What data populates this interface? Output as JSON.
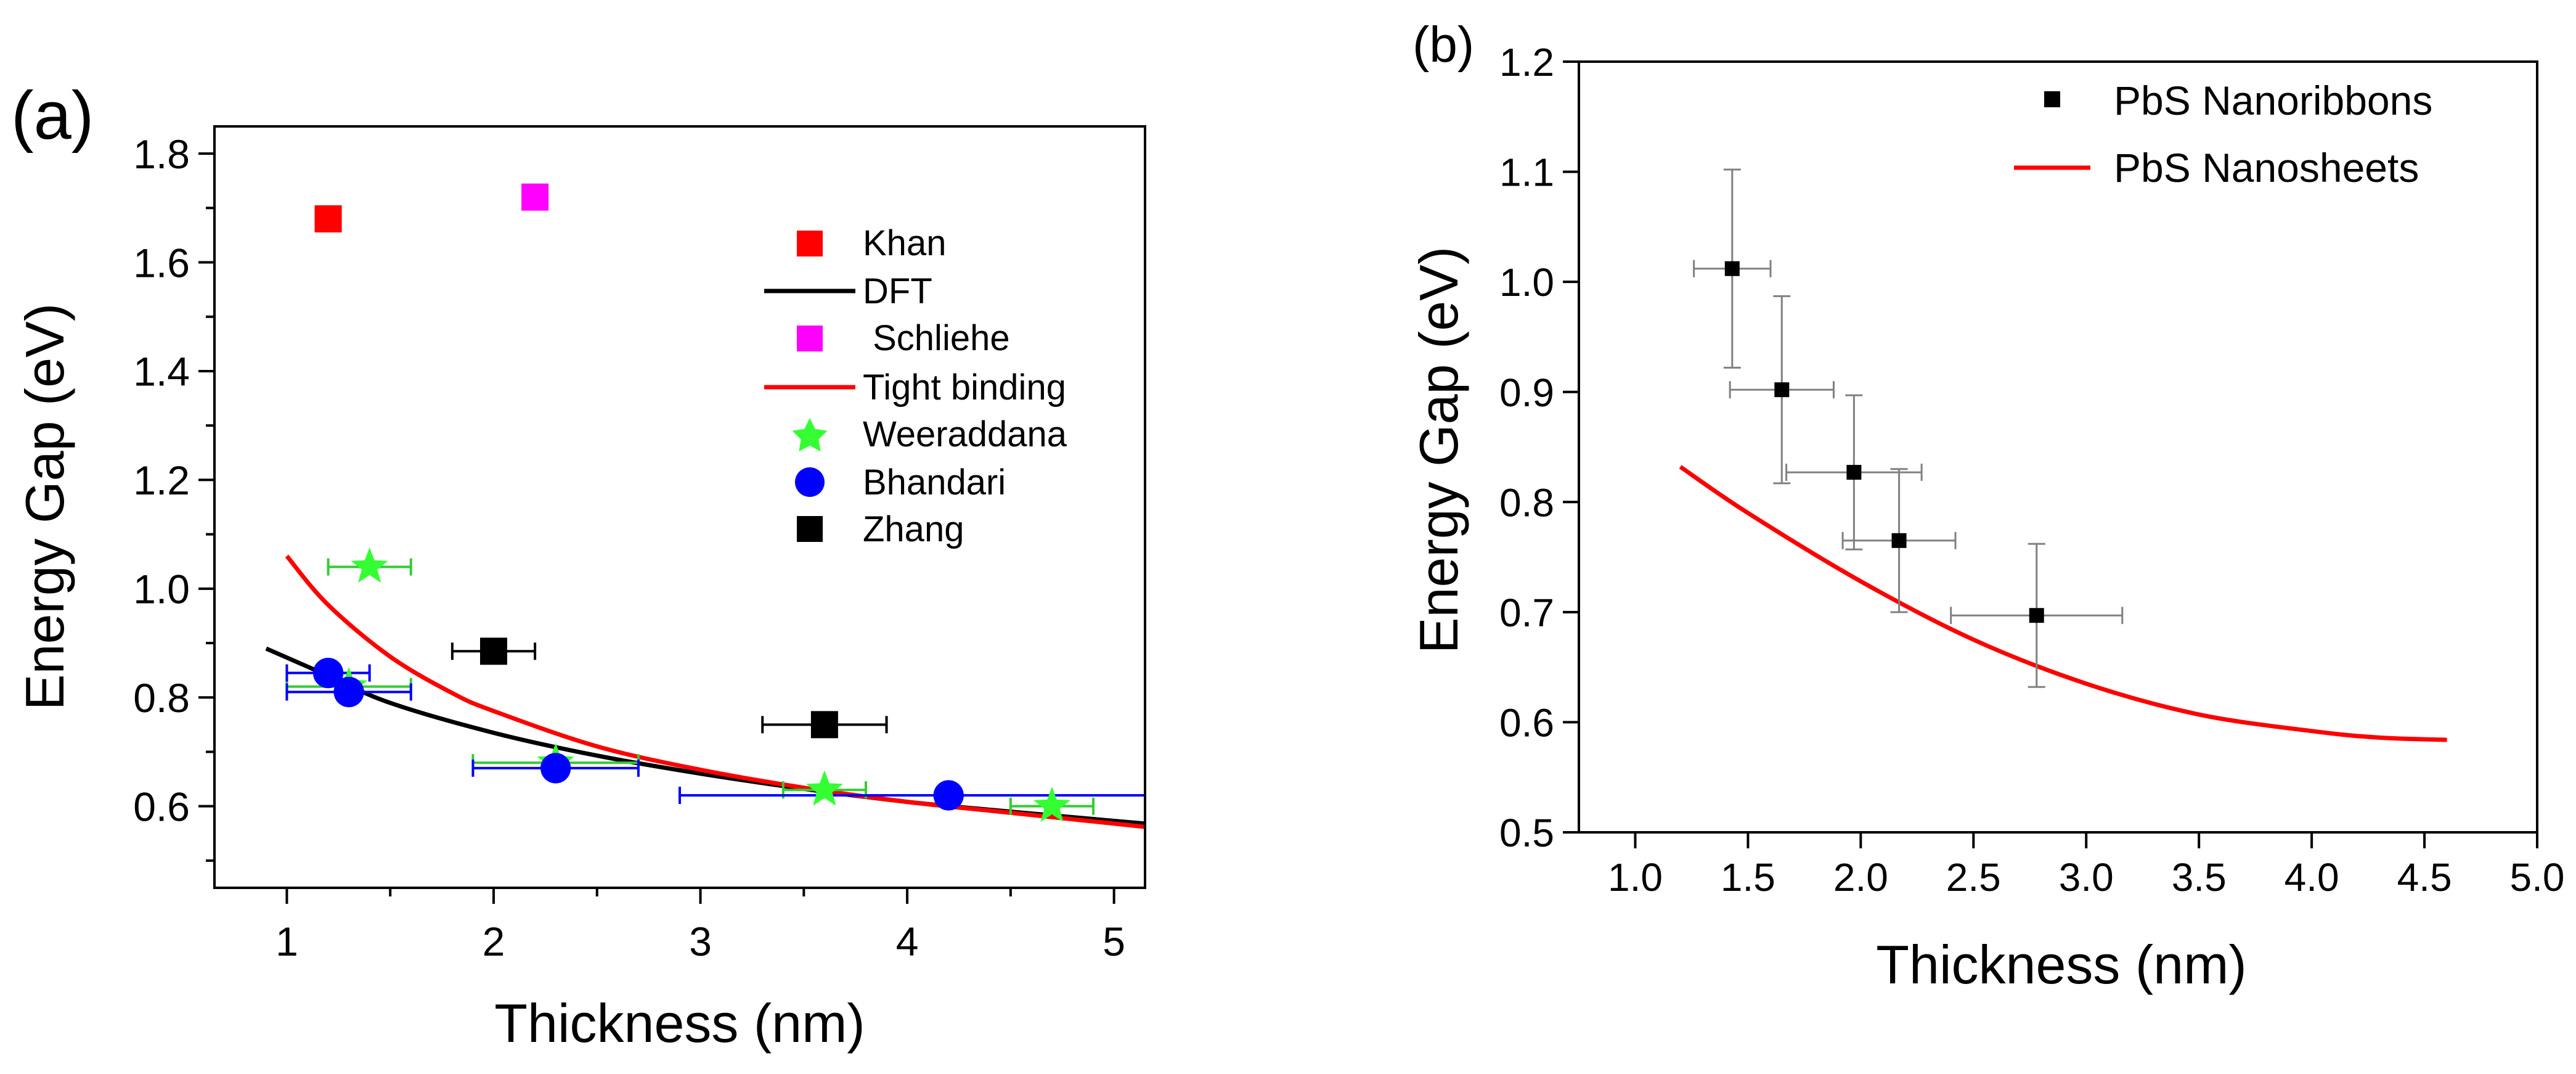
{
  "chart_data": [
    {
      "type": "scatter",
      "panel_label": "(a)",
      "xlabel": "Thickness (nm)",
      "ylabel": "Energy Gap (eV)",
      "xlim": [
        0.65,
        5.15
      ],
      "ylim": [
        0.45,
        1.85
      ],
      "x_ticks": [
        "1",
        "2",
        "3",
        "4",
        "5"
      ],
      "y_ticks": [
        "0.6",
        "0.8",
        "1.0",
        "1.2",
        "1.4",
        "1.6",
        "1.8"
      ],
      "grid": false,
      "legend_position": "top-right",
      "series": [
        {
          "name": "Khan",
          "marker": "square",
          "color": "#ff0000",
          "x": [
            1.2
          ],
          "y": [
            1.68
          ]
        },
        {
          "name": "DFT",
          "marker": "line",
          "color": "#000000",
          "x": [
            0.9,
            1.2,
            1.5,
            2.0,
            2.5,
            3.0,
            3.5,
            4.0,
            4.5,
            5.15
          ],
          "y": [
            0.89,
            0.84,
            0.79,
            0.735,
            0.693,
            0.66,
            0.632,
            0.608,
            0.59,
            0.568
          ]
        },
        {
          "name": " Schliehe",
          "marker": "square",
          "color": "#ff00ff",
          "x": [
            2.2
          ],
          "y": [
            1.72
          ]
        },
        {
          "name": "Tight binding",
          "marker": "line",
          "color": "#ff0000",
          "x": [
            1.0,
            1.2,
            1.5,
            1.8,
            2.0,
            2.5,
            3.0,
            3.5,
            4.0,
            4.5,
            5.15
          ],
          "y": [
            1.06,
            0.97,
            0.875,
            0.808,
            0.775,
            0.71,
            0.667,
            0.634,
            0.608,
            0.588,
            0.562
          ]
        },
        {
          "name": "Weeraddana",
          "marker": "star",
          "color": "#33ff33",
          "x": [
            1.4,
            1.3,
            2.3,
            3.6,
            4.7
          ],
          "y": [
            1.04,
            0.82,
            0.68,
            0.63,
            0.6
          ],
          "xerr": [
            0.2,
            0.3,
            0.4,
            0.2,
            0.2
          ]
        },
        {
          "name": "Bhandari",
          "marker": "circle",
          "color": "#0000ff",
          "x": [
            1.2,
            1.3,
            2.3,
            4.2
          ],
          "y": [
            0.845,
            0.81,
            0.67,
            0.62
          ],
          "xerr": [
            0.2,
            0.3,
            0.4,
            1.3
          ]
        },
        {
          "name": "Zhang",
          "marker": "square",
          "color": "#000000",
          "x": [
            2.0,
            3.6
          ],
          "y": [
            0.885,
            0.75
          ],
          "xerr": [
            0.2,
            0.3
          ]
        }
      ]
    },
    {
      "type": "scatter",
      "panel_label": "(b)",
      "xlabel": "Thickness (nm)",
      "ylabel": "Energy Gap (eV)",
      "xlim": [
        0.75,
        5.0
      ],
      "ylim": [
        0.5,
        1.2
      ],
      "x_ticks": [
        "1.0",
        "1.5",
        "2.0",
        "2.5",
        "3.0",
        "3.5",
        "4.0",
        "4.5",
        "5.0"
      ],
      "y_ticks": [
        "0.5",
        "0.6",
        "0.7",
        "0.8",
        "0.9",
        "1.0",
        "1.1",
        "1.2"
      ],
      "grid": false,
      "legend_position": "top-right",
      "series": [
        {
          "name": "PbS Nanoribbons",
          "marker": "square",
          "color": "#000000",
          "x": [
            1.43,
            1.65,
            1.97,
            2.17,
            2.78
          ],
          "y": [
            1.012,
            0.902,
            0.827,
            0.765,
            0.697
          ],
          "xerr": [
            0.17,
            0.23,
            0.3,
            0.25,
            0.38
          ],
          "yerr": [
            0.09,
            0.085,
            0.07,
            0.065,
            0.065
          ]
        },
        {
          "name": "PbS Nanosheets",
          "marker": "line",
          "color": "#ff0000",
          "x": [
            1.2,
            1.5,
            2.0,
            2.5,
            3.0,
            3.5,
            4.0,
            4.3,
            4.6
          ],
          "y": [
            0.832,
            0.79,
            0.728,
            0.675,
            0.635,
            0.607,
            0.592,
            0.586,
            0.584
          ]
        }
      ]
    }
  ]
}
